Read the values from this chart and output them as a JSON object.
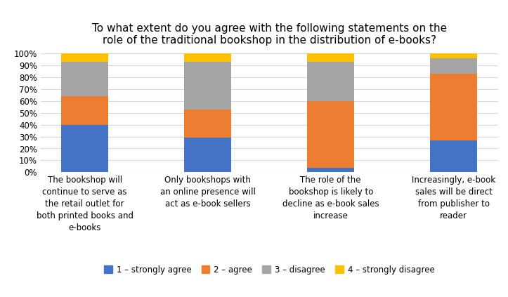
{
  "title": "To what extent do you agree with the following statements on the\nrole of the traditional bookshop in the distribution of e-books?",
  "categories": [
    "The bookshop will\ncontinue to serve as\nthe retail outlet for\nboth printed books and\ne-books",
    "Only bookshops with\nan online presence will\nact as e-book sellers",
    "The role of the\nbookshop is likely to\ndecline as e-book sales\nincrease",
    "Increasingly, e-book\nsales will be direct\nfrom publisher to\nreader"
  ],
  "series": {
    "1 – strongly agree": [
      40,
      29,
      4,
      27
    ],
    "2 – agree": [
      24,
      24,
      56,
      56
    ],
    "3 – disagree": [
      29,
      40,
      33,
      13
    ],
    "4 – strongly disagree": [
      7,
      7,
      7,
      4
    ]
  },
  "colors": {
    "1 – strongly agree": "#4472C4",
    "2 – agree": "#ED7D31",
    "3 – disagree": "#A5A5A5",
    "4 – strongly disagree": "#FFC000"
  },
  "ylim": [
    0,
    100
  ],
  "yticks": [
    0,
    10,
    20,
    30,
    40,
    50,
    60,
    70,
    80,
    90,
    100
  ],
  "ytick_labels": [
    "0%",
    "10%",
    "20%",
    "30%",
    "40%",
    "50%",
    "60%",
    "70%",
    "80%",
    "90%",
    "100%"
  ],
  "bar_width": 0.38,
  "title_fontsize": 11,
  "tick_fontsize": 8.5,
  "legend_fontsize": 8.5
}
